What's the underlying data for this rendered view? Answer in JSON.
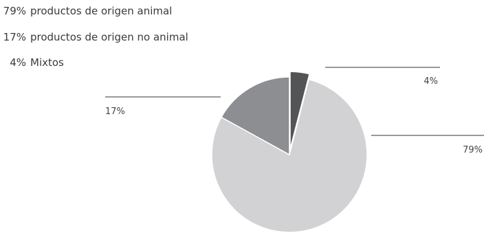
{
  "legend": [
    {
      "pct": "79%",
      "label": "productos de origen animal"
    },
    {
      "pct": "17%",
      "label": "productos de origen no animal"
    },
    {
      "pct": "4%",
      "label": "Mixtos"
    }
  ],
  "chart_data": {
    "type": "pie",
    "categories": [
      "productos de origen animal",
      "productos de origen no animal",
      "Mixtos"
    ],
    "values": [
      79,
      17,
      4
    ],
    "data_labels": [
      "79%",
      "17%",
      "4%"
    ],
    "colors": [
      "#d2d2d4",
      "#8c8e91",
      "#525456"
    ],
    "exploded_slice": "Mixtos",
    "title": "",
    "legend": "top-left"
  }
}
